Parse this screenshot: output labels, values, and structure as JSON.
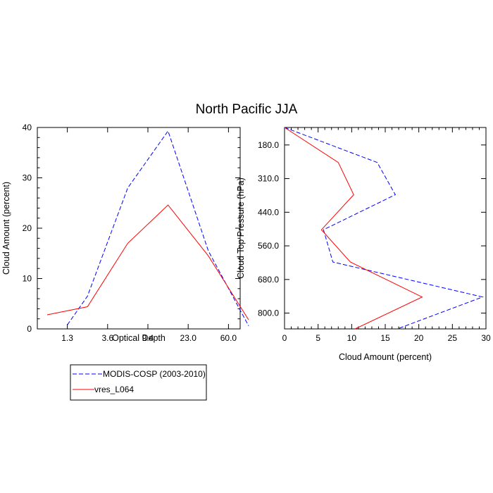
{
  "title": "North Pacific JJA",
  "colors": {
    "model": "#ff0000",
    "obs": "#0000ff"
  },
  "legend": {
    "placement": "below-left",
    "entries": [
      {
        "name": "MODIS-COSP (2003-2010)",
        "color": "#0000ff",
        "style": "dashed"
      },
      {
        "name": "vres_L064",
        "color": "#ff0000",
        "style": "solid"
      }
    ]
  },
  "chart_data": [
    {
      "type": "line",
      "xlabel": "Optical Depth",
      "ylabel": "Cloud Amount (percent)",
      "ylim": [
        0,
        40
      ],
      "y_ticks": [
        "0",
        "10",
        "20",
        "30",
        "40"
      ],
      "x_tick_labels": [
        "1.3",
        "3.6",
        "9.4",
        "23.0",
        "60.0"
      ],
      "series": [
        {
          "name": "MODIS-COSP (2003-2010)",
          "points": [
            [
              0.5,
              0.8
            ],
            [
              1.0,
              6.5
            ],
            [
              2.0,
              28.0
            ],
            [
              3.0,
              39.3
            ],
            [
              4.0,
              15.5
            ],
            [
              5.0,
              0.6
            ]
          ]
        },
        {
          "name": "vres_L064",
          "points": [
            [
              0.0,
              2.8
            ],
            [
              1.0,
              4.4
            ],
            [
              2.0,
              17.0
            ],
            [
              3.0,
              24.6
            ],
            [
              4.0,
              14.5
            ],
            [
              5.0,
              1.8
            ]
          ]
        }
      ]
    },
    {
      "type": "line",
      "xlabel": "Cloud Amount (percent)",
      "ylabel": "Cloud Top Pressure (hPa)",
      "xlim": [
        0,
        30
      ],
      "x_ticks": [
        "0",
        "5",
        "10",
        "15",
        "20",
        "25",
        "30"
      ],
      "y_tick_labels": [
        "180.0",
        "310.0",
        "440.0",
        "560.0",
        "680.0",
        "800.0"
      ],
      "series": [
        {
          "name": "MODIS-COSP (2003-2010)",
          "points": [
            [
              0.0,
              0
            ],
            [
              13.8,
              1.3
            ],
            [
              16.5,
              2.5
            ],
            [
              5.8,
              3.8
            ],
            [
              7.2,
              5.0
            ],
            [
              29.5,
              6.3
            ],
            [
              16.8,
              7.5
            ]
          ]
        },
        {
          "name": "vres_L064",
          "points": [
            [
              0.0,
              0
            ],
            [
              8.0,
              1.3
            ],
            [
              10.3,
              2.5
            ],
            [
              5.5,
              3.8
            ],
            [
              9.8,
              5.0
            ],
            [
              20.5,
              6.3
            ],
            [
              10.5,
              7.5
            ]
          ]
        }
      ]
    }
  ]
}
